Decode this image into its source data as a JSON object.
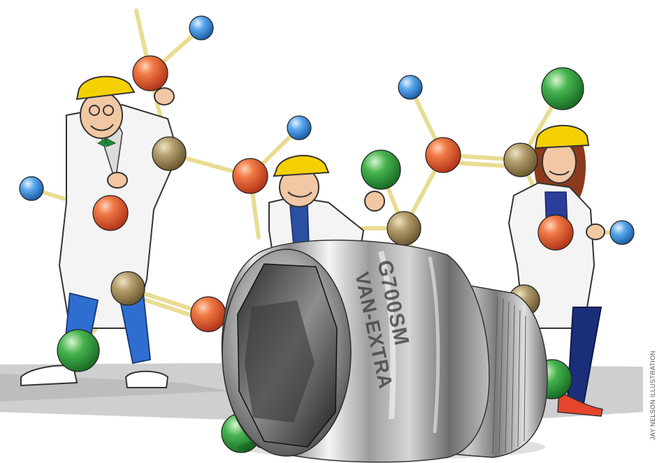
{
  "illustration": {
    "credit": "JAY NELSON ILLUSTRATION"
  },
  "socket": {
    "engraving_line1": "G700SM",
    "engraving_line2": "VAN-EXTRA"
  },
  "palette": {
    "atom_orange": "#e8562a",
    "atom_blue": "#3b8fe0",
    "atom_green": "#2f9a3e",
    "atom_bronze": "#a08a5a",
    "bond_yellow": "#f2e6a4",
    "hardhat_yellow": "#f5d000",
    "labcoat": "#f4f4f4",
    "chrome": "#b8b8b8",
    "floor_gray": "#c9c9c9"
  }
}
